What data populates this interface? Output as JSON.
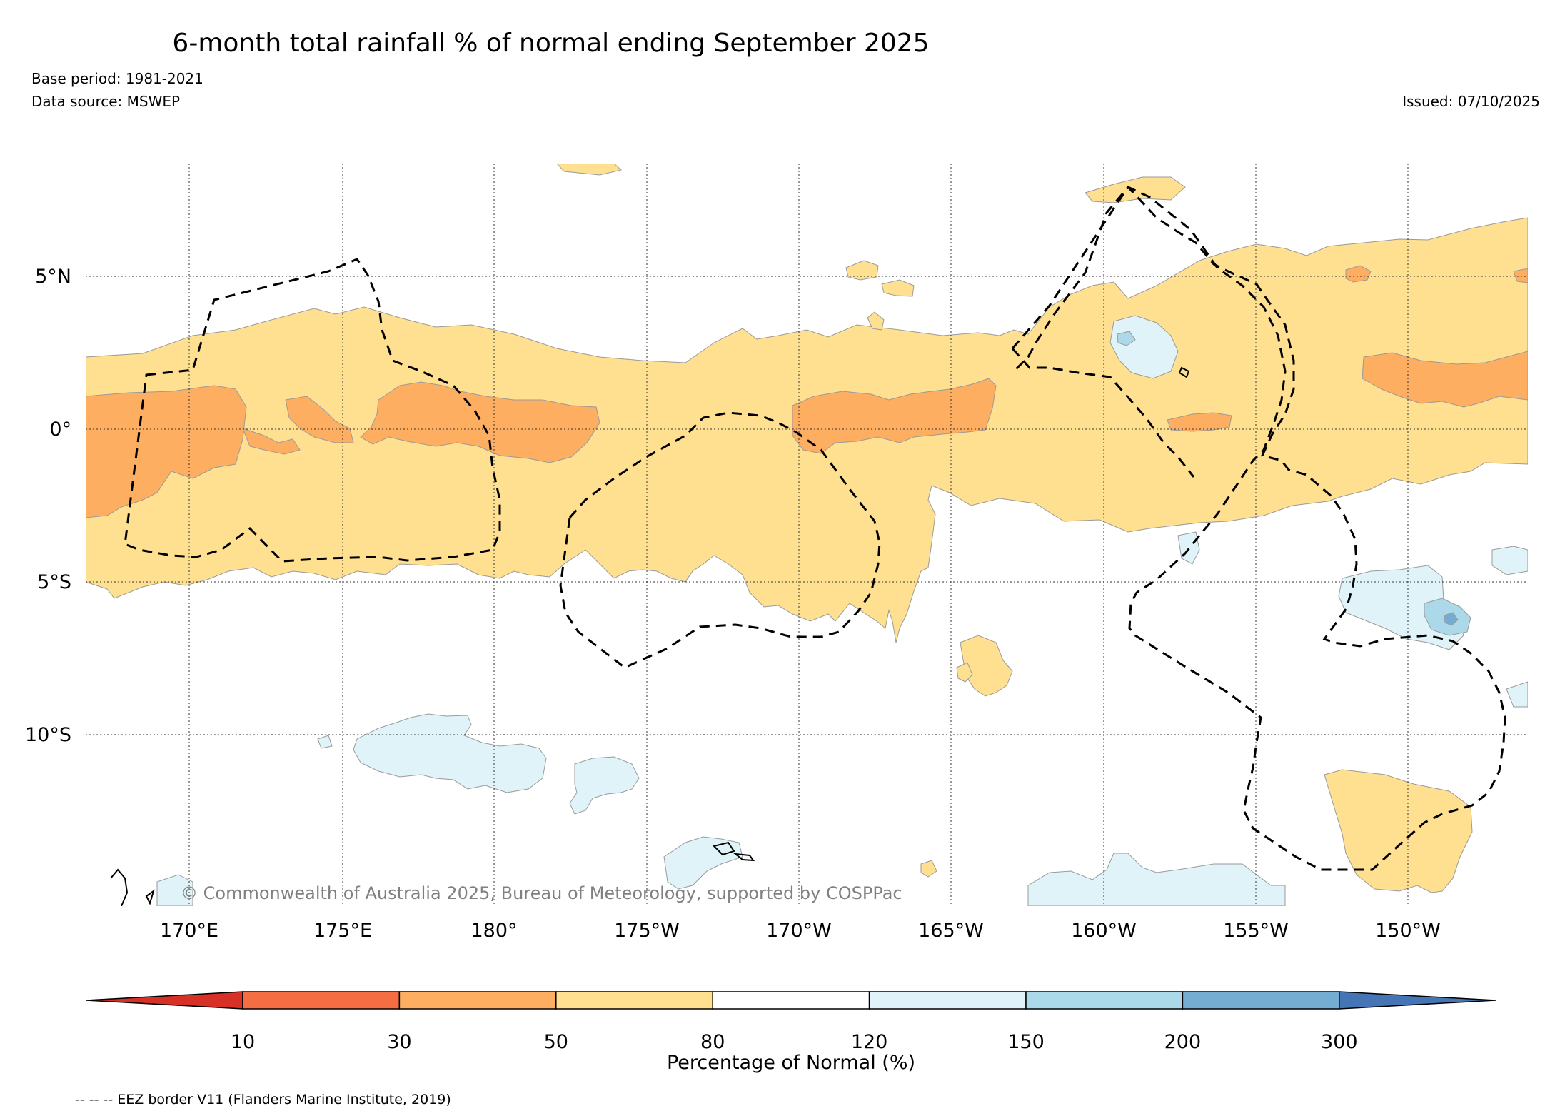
{
  "title": "6-month total rainfall % of normal ending September 2025",
  "base_period": "Base period: 1981-2021",
  "data_source": "Data source: MSWEP",
  "issued": "Issued: 07/10/2025",
  "copyright": "© Commonwealth of Australia 2025, Bureau of Meteorology, supported by COSPPac",
  "lon_labels": [
    "170°E",
    "175°E",
    "180°",
    "175°W",
    "170°W",
    "165°W",
    "160°W",
    "155°W",
    "150°W"
  ],
  "lat_labels": [
    "5°N",
    "0°",
    "5°S",
    "10°S"
  ],
  "colorbar": {
    "label": "Percentage of Normal (%)",
    "ticks": [
      "10",
      "30",
      "50",
      "80",
      "120",
      "150",
      "200",
      "300"
    ],
    "colors": [
      "#d73027",
      "#f46d43",
      "#fdae61",
      "#fee090",
      "#ffffff",
      "#e0f3f8",
      "#abd9e9",
      "#74add1",
      "#4575b4"
    ]
  },
  "footnote": "-- -- -- EEZ border V11 (Flanders Marine Institute, 2019)"
}
